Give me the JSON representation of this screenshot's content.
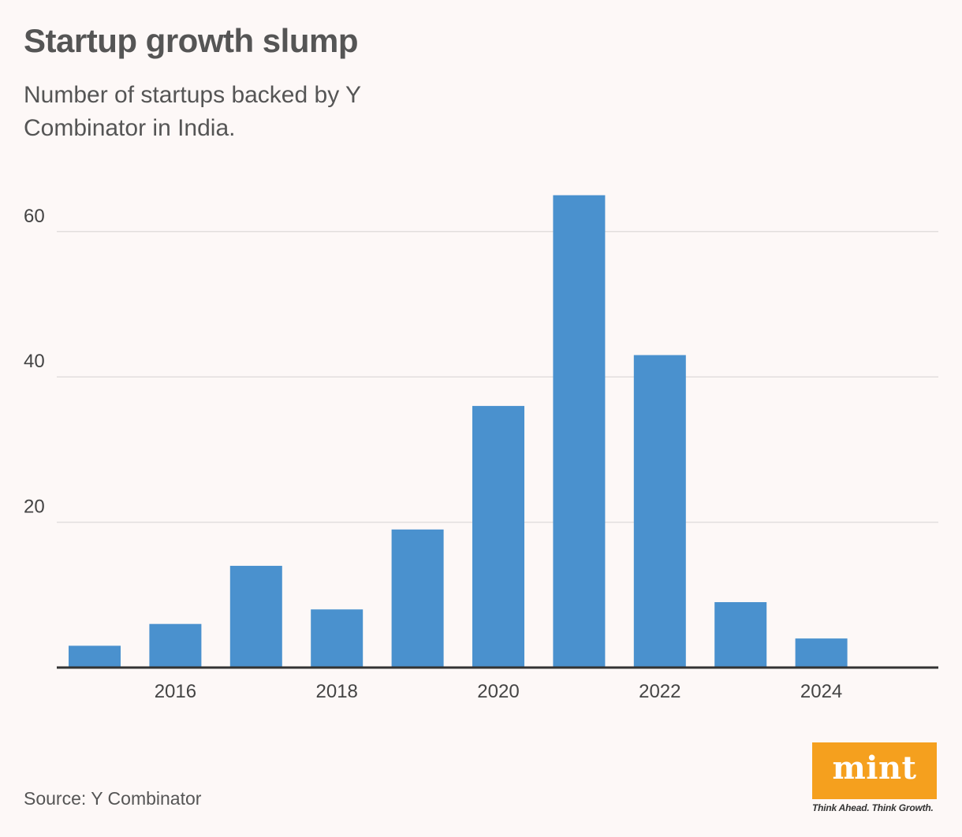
{
  "header": {
    "title": "Startup growth slump",
    "subtitle": "Number of startups backed by Y Combinator in India."
  },
  "footer": {
    "source": "Source: Y Combinator"
  },
  "logo": {
    "name": "mint",
    "tagline": "Think Ahead. Think Growth.",
    "color": "#f5a01e"
  },
  "chart_data": {
    "type": "bar",
    "title": "Startup growth slump",
    "subtitle": "Number of startups backed by Y Combinator in India.",
    "x": [
      2015,
      2016,
      2017,
      2018,
      2019,
      2020,
      2021,
      2022,
      2023,
      2024
    ],
    "values": [
      3,
      6,
      14,
      8,
      19,
      36,
      65,
      43,
      9,
      4
    ],
    "x_tick_labels": [
      "2016",
      "2018",
      "2020",
      "2022",
      "2024"
    ],
    "y_ticks": [
      20,
      40,
      60
    ],
    "ylim": [
      0,
      68
    ],
    "xlabel": "",
    "ylabel": "",
    "grid": "horizontal",
    "legend": "none",
    "bar_color": "#4a91ce"
  }
}
